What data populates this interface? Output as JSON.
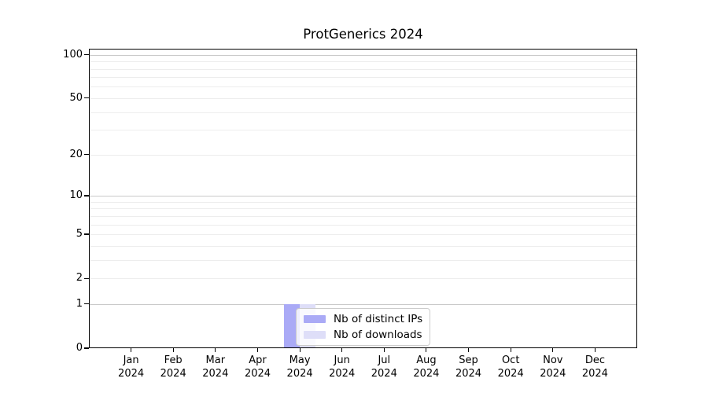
{
  "title": "ProtGenerics 2024",
  "chart_data": {
    "type": "bar",
    "title": "ProtGenerics 2024",
    "categories": [
      "Jan",
      "Feb",
      "Mar",
      "Apr",
      "May",
      "Jun",
      "Jul",
      "Aug",
      "Sep",
      "Oct",
      "Nov",
      "Dec"
    ],
    "x_sublabel": "2024",
    "series": [
      {
        "name": "Nb of distinct IPs",
        "color": "#aaaaf6",
        "values": [
          0,
          0,
          0,
          0,
          1,
          0,
          0,
          0,
          0,
          0,
          0,
          0
        ]
      },
      {
        "name": "Nb of downloads",
        "color": "#dedef8",
        "values": [
          0,
          0,
          0,
          0,
          1,
          0,
          0,
          0,
          0,
          0,
          0,
          0
        ]
      }
    ],
    "y_scale": "log1p",
    "ylim": [
      0,
      110
    ],
    "y_tick_values": [
      0,
      1,
      2,
      5,
      10,
      20,
      50,
      100
    ],
    "y_gridlines_major": [
      1,
      10,
      100
    ],
    "y_gridlines_minor": [
      2,
      3,
      4,
      5,
      6,
      7,
      8,
      9,
      20,
      30,
      40,
      50,
      60,
      70,
      80,
      90
    ],
    "grid": true,
    "legend": {
      "entries": [
        "Nb of distinct IPs",
        "Nb of downloads"
      ],
      "location": "inside-lower-center"
    },
    "colors": {
      "grid_major": "#c9c9c9",
      "grid_minor": "#ededed",
      "spine": "#000000",
      "background": "#ffffff"
    }
  }
}
